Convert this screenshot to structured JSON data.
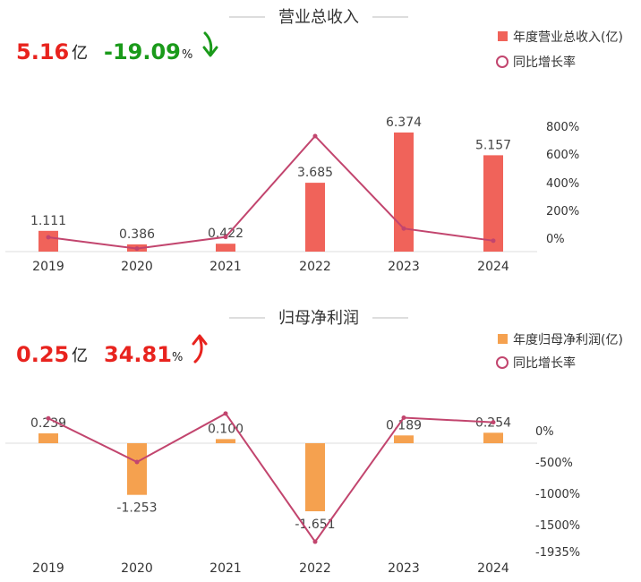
{
  "colors": {
    "revenue_bar": "#f0635a",
    "profit_bar": "#f5a14f",
    "yoy_line": "#c2456e",
    "up_red": "#e8231e",
    "down_green": "#1a9a1a"
  },
  "sections": [
    {
      "title": "营业总收入",
      "kpi": {
        "value": "5.16",
        "unit": "亿",
        "change": "-19.09",
        "pct_sign": "%",
        "direction": "down"
      },
      "legend": {
        "bar_label": "年度营业总收入(亿)",
        "line_label": "同比增长率"
      }
    },
    {
      "title": "归母净利润",
      "kpi": {
        "value": "0.25",
        "unit": "亿",
        "change": "34.81",
        "pct_sign": "%",
        "direction": "up"
      },
      "legend": {
        "bar_label": "年度归母净利润(亿)",
        "line_label": "同比增长率"
      }
    }
  ],
  "chart_data": [
    {
      "type": "bar",
      "title": "营业总收入",
      "categories": [
        "2019",
        "2020",
        "2021",
        "2022",
        "2023",
        "2024"
      ],
      "series": [
        {
          "name": "年度营业总收入(亿)",
          "type": "bar",
          "values": [
            1.111,
            0.386,
            0.422,
            3.685,
            6.374,
            5.157
          ],
          "value_labels": [
            "1.111",
            "0.386",
            "0.422",
            "3.685",
            "6.374",
            "5.157"
          ]
        },
        {
          "name": "同比增长率",
          "type": "line",
          "unit": "%",
          "values": [
            7,
            -79,
            9,
            773,
            73,
            -19.09
          ]
        }
      ],
      "y_bar_range": [
        0,
        6.374
      ],
      "y_line_ticks": [
        "800%",
        "600%",
        "400%",
        "200%",
        "0%"
      ],
      "y_line_range": [
        0,
        800
      ],
      "legend_position": "top-right",
      "grid": false
    },
    {
      "type": "bar",
      "title": "归母净利润",
      "categories": [
        "2019",
        "2020",
        "2021",
        "2022",
        "2023",
        "2024"
      ],
      "series": [
        {
          "name": "年度归母净利润(亿)",
          "type": "bar",
          "values": [
            0.239,
            -1.253,
            0.1,
            -1.651,
            0.189,
            0.254
          ],
          "value_labels": [
            "0.239",
            "-1.253",
            "0.100",
            "-1.651",
            "0.189",
            "0.254"
          ]
        },
        {
          "name": "同比增长率",
          "type": "line",
          "unit": "%",
          "values": [
            100,
            -620,
            180,
            -1935,
            111,
            34.81
          ]
        }
      ],
      "y_line_ticks": [
        "0%",
        "-500%",
        "-1000%",
        "-1500%",
        "-1935%"
      ],
      "y_line_range": [
        -1935,
        0
      ],
      "legend_position": "top-right",
      "grid": false
    }
  ]
}
